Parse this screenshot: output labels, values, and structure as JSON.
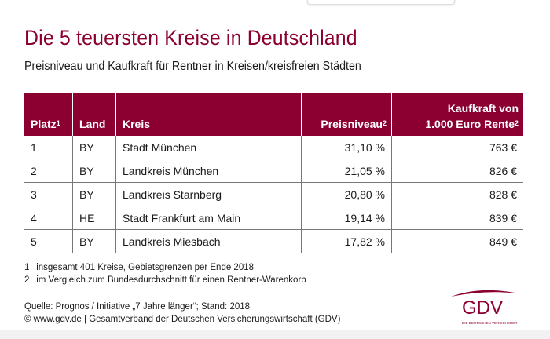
{
  "title": "Die 5 teuersten Kreise in Deutschland",
  "subtitle": "Preisniveau und Kaufkraft für Rentner in Kreisen/kreisfreien Städten",
  "table": {
    "headers": {
      "platz": "Platz",
      "platz_sup": "1",
      "land": "Land",
      "kreis": "Kreis",
      "preisniveau": "Preisniveau",
      "preisniveau_sup": "2",
      "kaufkraft_line1": "Kaufkraft von",
      "kaufkraft_line2": "1.000 Euro Rente",
      "kaufkraft_sup": "2"
    },
    "rows": [
      {
        "platz": "1",
        "land": "BY",
        "kreis": "Stadt München",
        "preisniveau": "31,10 %",
        "kaufkraft": "763 €"
      },
      {
        "platz": "2",
        "land": "BY",
        "kreis": "Landkreis München",
        "preisniveau": "21,05 %",
        "kaufkraft": "826 €"
      },
      {
        "platz": "3",
        "land": "BY",
        "kreis": "Landkreis Starnberg",
        "preisniveau": "20,80 %",
        "kaufkraft": "828 €"
      },
      {
        "platz": "4",
        "land": "HE",
        "kreis": "Stadt Frankfurt am Main",
        "preisniveau": "19,14 %",
        "kaufkraft": "839 €"
      },
      {
        "platz": "5",
        "land": "BY",
        "kreis": "Landkreis Miesbach",
        "preisniveau": "17,82 %",
        "kaufkraft": "849 €"
      }
    ]
  },
  "footnotes": [
    {
      "num": "1",
      "text": "insgesamt 401 Kreise, Gebietsgrenzen per Ende 2018"
    },
    {
      "num": "2",
      "text": "im Vergleich zum Bundesdurchschnitt für einen Rentner-Warenkorb"
    }
  ],
  "source": "Quelle: Prognos / Initiative „7 Jahre länger“; Stand: 2018",
  "copyright": "© www.gdv.de | Gesamtverband der Deutschen Versicherungswirtschaft (GDV)",
  "logo": {
    "text": "GDV",
    "tagline": "DIE DEUTSCHEN VERSICHERER"
  },
  "colors": {
    "brand": "#8b0031"
  }
}
